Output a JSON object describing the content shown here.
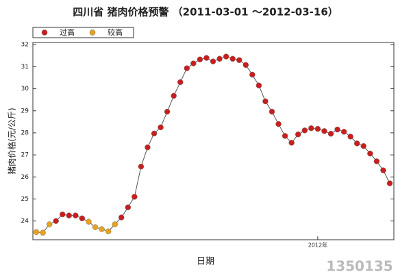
{
  "chart_data": {
    "type": "line",
    "title": "四川省 猪肉价格预警 （2011-03-01 ～2012-03-16）",
    "x_label": "日期",
    "y_label": "猪肉价格(元/公斤)",
    "watermark": "1350135",
    "categories": [
      null,
      null,
      null,
      null,
      null,
      null,
      null,
      null,
      null,
      null,
      null,
      null,
      null,
      null,
      null,
      null,
      null,
      null,
      null,
      null,
      null,
      null,
      null,
      null,
      null,
      null,
      null,
      null,
      null,
      null,
      null,
      null,
      null,
      null,
      null,
      null,
      null,
      null,
      null,
      null,
      null,
      null,
      null,
      "2012年",
      null,
      null,
      null,
      null,
      null,
      null,
      null,
      null,
      null,
      null,
      null
    ],
    "series": [
      {
        "name": "过高",
        "color": "#c81e1e",
        "values": [
          null,
          null,
          null,
          24.0,
          24.3,
          24.25,
          24.25,
          24.12,
          null,
          null,
          null,
          null,
          null,
          24.16,
          24.62,
          25.1,
          26.47,
          27.34,
          27.97,
          28.25,
          28.96,
          29.68,
          30.3,
          30.93,
          31.15,
          31.33,
          31.4,
          31.24,
          31.36,
          31.46,
          31.36,
          31.3,
          31.08,
          30.64,
          30.15,
          29.43,
          28.96,
          28.4,
          27.86,
          27.55,
          27.93,
          28.11,
          28.21,
          28.18,
          28.08,
          27.96,
          28.15,
          28.05,
          27.83,
          27.52,
          27.4,
          27.06,
          26.71,
          26.3,
          25.71
        ]
      },
      {
        "name": "较高",
        "color": "#e8a21e",
        "values": [
          23.5,
          23.47,
          23.85,
          null,
          null,
          null,
          null,
          null,
          23.97,
          23.72,
          23.63,
          23.53,
          23.85,
          null,
          null,
          null,
          null,
          null,
          null,
          null,
          null,
          null,
          null,
          null,
          null,
          null,
          null,
          null,
          null,
          null,
          null,
          null,
          null,
          null,
          null,
          null,
          null,
          null,
          null,
          null,
          null,
          null,
          null,
          null,
          null,
          null,
          null,
          null,
          null,
          null,
          null,
          null,
          null,
          null,
          null
        ]
      }
    ],
    "ylim": [
      23.15,
      32.1
    ],
    "yticks": [
      24,
      25,
      26,
      27,
      28,
      29,
      30,
      31,
      32
    ],
    "legend": "top-left",
    "line_color": "#555555"
  }
}
